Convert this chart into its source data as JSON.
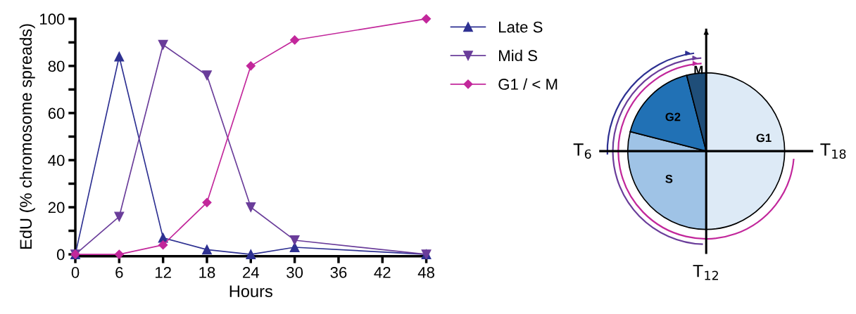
{
  "chart_data": [
    {
      "type": "line",
      "xlabel": "Hours",
      "ylabel": "EdU (% chromosome spreads)",
      "x": [
        0,
        6,
        12,
        18,
        24,
        30,
        48
      ],
      "series": [
        {
          "name": "Late S",
          "color": "#2e3192",
          "marker": "triangle",
          "values": [
            0,
            84,
            7,
            2,
            0,
            3,
            0
          ]
        },
        {
          "name": "Mid S",
          "color": "#6a3d9a",
          "marker": "triangle_down",
          "values": [
            0,
            16,
            89,
            76,
            20,
            6,
            0
          ]
        },
        {
          "name": "G1 / < M",
          "color": "#c2279b",
          "marker": "diamond",
          "values": [
            0,
            0,
            4,
            22,
            80,
            91,
            100
          ]
        }
      ],
      "xlim": [
        0,
        48
      ],
      "xticks": [
        0,
        6,
        12,
        18,
        24,
        30,
        36,
        42,
        48
      ],
      "ylim": [
        0,
        100
      ],
      "yticks": [
        0,
        {
          "value": 10,
          "label": null
        },
        20,
        {
          "value": 30,
          "label": null
        },
        40,
        {
          "value": 50,
          "label": null
        },
        60,
        {
          "value": 70,
          "label": null
        },
        80,
        {
          "value": 90,
          "label": null
        },
        100
      ],
      "grid": false,
      "legend": "right",
      "line_style": "solid"
    },
    {
      "type": "pie",
      "categories": [
        "G1",
        "S",
        "G2",
        "M"
      ],
      "values": [
        50,
        29,
        17,
        4
      ],
      "colors": [
        "#ddeaf6",
        "#9fc3e6",
        "#2171b5",
        "#1f4e79"
      ],
      "annotations": [
        "T$_{6}$",
        "T$_{12}$",
        "T$_{18}$"
      ]
    }
  ]
}
